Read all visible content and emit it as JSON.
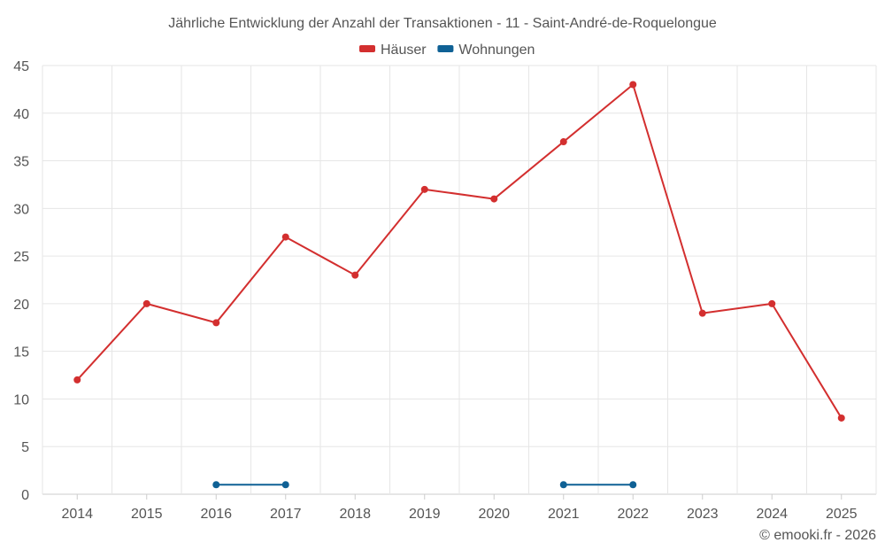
{
  "chart_data": {
    "type": "line",
    "title": "Jährliche Entwicklung der Anzahl der Transaktionen - 11 - Saint-André-de-Roquelongue",
    "categories": [
      "2014",
      "2015",
      "2016",
      "2017",
      "2018",
      "2019",
      "2020",
      "2021",
      "2022",
      "2023",
      "2024",
      "2025"
    ],
    "series": [
      {
        "name": "Häuser",
        "color": "#d32f2f",
        "values": [
          12,
          20,
          18,
          27,
          23,
          32,
          31,
          37,
          43,
          19,
          20,
          8
        ]
      },
      {
        "name": "Wohnungen",
        "color": "#0f6195",
        "values": [
          null,
          null,
          1,
          1,
          null,
          null,
          null,
          1,
          1,
          null,
          null,
          null
        ]
      }
    ],
    "ylim": [
      0,
      45
    ],
    "yticks": [
      0,
      5,
      10,
      15,
      20,
      25,
      30,
      35,
      40,
      45
    ],
    "xlabel": "",
    "ylabel": "",
    "grid": true,
    "legend_position": "top-center"
  },
  "footer": {
    "credit": "© emooki.fr - 2026"
  },
  "colors": {
    "grid": "#e6e6e6",
    "axis": "#cccccc",
    "text": "#555555"
  }
}
